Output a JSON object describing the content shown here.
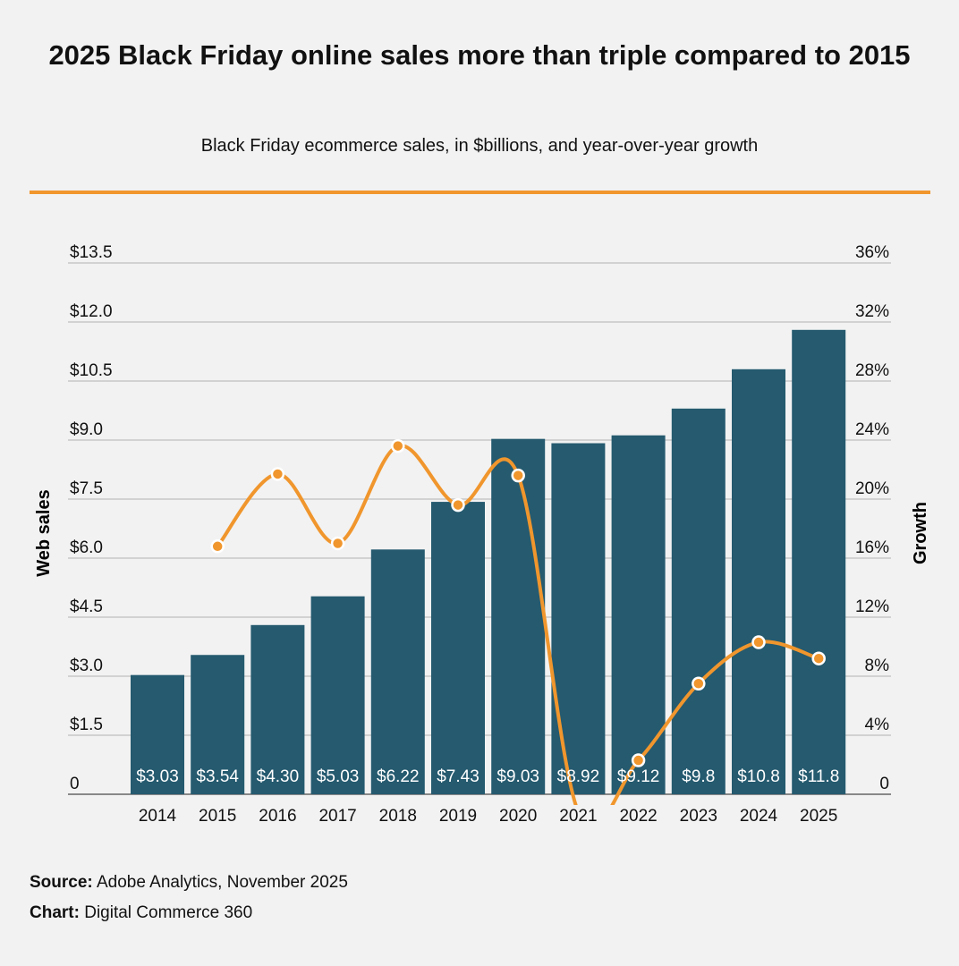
{
  "title": "2025 Black Friday online sales more than triple compared to 2015",
  "subtitle": "Black Friday ecommerce sales, in $billions, and year-over-year growth",
  "footer": {
    "source_label": "Source:",
    "source_text": "Adobe Analytics, November 2025",
    "chart_label": "Chart:",
    "chart_text": "Digital Commerce 360"
  },
  "colors": {
    "bar": "#255a6f",
    "line": "#f0962d",
    "accent_rule": "#f0962d"
  },
  "chart_data": {
    "type": "bar+line",
    "title": "2025 Black Friday online sales more than triple compared to 2015",
    "subtitle": "Black Friday ecommerce sales, in $billions, and year-over-year growth",
    "ylabel": "Web sales",
    "y2label": "Growth",
    "categories": [
      "2014",
      "2015",
      "2016",
      "2017",
      "2018",
      "2019",
      "2020",
      "2021",
      "2022",
      "2023",
      "2024",
      "2025"
    ],
    "ylim": [
      0,
      13.5
    ],
    "y_ticks": [
      "0",
      "$1.5",
      "$3.0",
      "$4.5",
      "$6.0",
      "$7.5",
      "$9.0",
      "$10.5",
      "$12.0",
      "$13.5"
    ],
    "y2lim": [
      0,
      36
    ],
    "y2_ticks": [
      "0",
      "4%",
      "8%",
      "12%",
      "16%",
      "20%",
      "24%",
      "28%",
      "32%",
      "36%"
    ],
    "grid": true,
    "series": [
      {
        "type": "bar",
        "axis": "left",
        "values": [
          3.03,
          3.54,
          4.3,
          5.03,
          6.22,
          7.43,
          9.03,
          8.92,
          9.12,
          9.8,
          10.8,
          11.8
        ],
        "labels": [
          "$3.03",
          "$3.54",
          "$4.30",
          "$5.03",
          "$6.22",
          "$7.43",
          "$9.03",
          "$8.92",
          "$9.12",
          "$9.8",
          "$10.8",
          "$11.8"
        ]
      },
      {
        "type": "line",
        "axis": "right",
        "smooth": true,
        "values": [
          null,
          16.8,
          21.7,
          17.0,
          23.6,
          19.6,
          21.6,
          -1.2,
          2.3,
          7.5,
          10.3,
          9.2
        ]
      }
    ]
  }
}
